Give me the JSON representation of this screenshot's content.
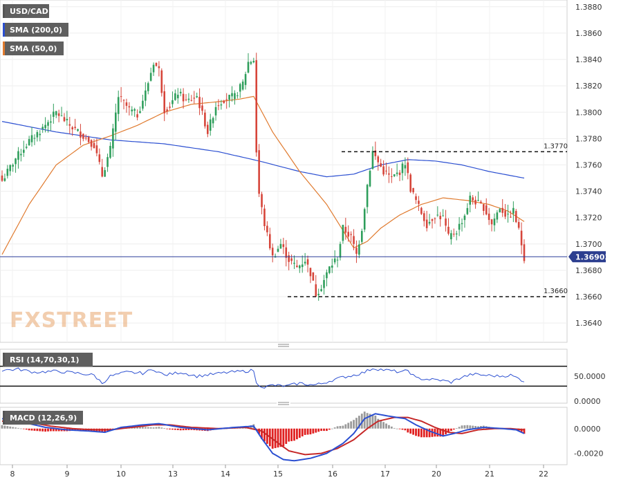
{
  "logo": {
    "text": "FXSTREET"
  },
  "chart_data": [
    {
      "type": "candlestick",
      "panel": "price",
      "symbol": "USD/CAD",
      "legend": [
        {
          "label": "USD/CAD",
          "color": "#555555"
        },
        {
          "label": "SMA (200,0)",
          "color": "#2b4fd1"
        },
        {
          "label": "SMA (50,0)",
          "color": "#e07a2e"
        }
      ],
      "ylim": [
        1.3628,
        1.3882
      ],
      "y_ticks": [
        "1.3880",
        "1.3860",
        "1.3840",
        "1.3820",
        "1.3800",
        "1.3780",
        "1.3760",
        "1.3740",
        "1.3720",
        "1.3700",
        "1.3680",
        "1.3660",
        "1.3640"
      ],
      "y_tick_values": [
        1.388,
        1.386,
        1.384,
        1.382,
        1.38,
        1.378,
        1.376,
        1.374,
        1.372,
        1.37,
        1.368,
        1.366,
        1.364
      ],
      "x_ticks": [
        "8",
        "9",
        "10",
        "13",
        "14",
        "15",
        "16",
        "17",
        "20",
        "21",
        "22"
      ],
      "last_price": {
        "label": "1.36903",
        "value": 1.36903
      },
      "levels": [
        {
          "label": "1.3770",
          "value": 1.377
        },
        {
          "label": "1.3660",
          "value": 1.366
        }
      ],
      "candle_colors": {
        "up": "#2e9e5b",
        "down": "#d6453a"
      },
      "close_anchors": [
        [
          0,
          1.3748
        ],
        [
          5,
          1.3765
        ],
        [
          10,
          1.3778
        ],
        [
          15,
          1.3788
        ],
        [
          20,
          1.38
        ],
        [
          25,
          1.379
        ],
        [
          30,
          1.3782
        ],
        [
          34,
          1.3775
        ],
        [
          37,
          1.3752
        ],
        [
          40,
          1.3772
        ],
        [
          43,
          1.3812
        ],
        [
          47,
          1.3802
        ],
        [
          50,
          1.3798
        ],
        [
          53,
          1.3815
        ],
        [
          56,
          1.3838
        ],
        [
          58,
          1.3832
        ],
        [
          60,
          1.3802
        ],
        [
          62,
          1.3805
        ],
        [
          65,
          1.3815
        ],
        [
          68,
          1.3808
        ],
        [
          72,
          1.3812
        ],
        [
          76,
          1.3785
        ],
        [
          79,
          1.3805
        ],
        [
          82,
          1.381
        ],
        [
          86,
          1.3812
        ],
        [
          89,
          1.3822
        ],
        [
          91,
          1.3838
        ],
        [
          93,
          1.384
        ],
        [
          94,
          1.377
        ],
        [
          95,
          1.3738
        ],
        [
          97,
          1.3715
        ],
        [
          100,
          1.369
        ],
        [
          103,
          1.37
        ],
        [
          106,
          1.3688
        ],
        [
          109,
          1.3682
        ],
        [
          112,
          1.3688
        ],
        [
          114,
          1.3678
        ],
        [
          116,
          1.3662
        ],
        [
          118,
          1.3668
        ],
        [
          121,
          1.3682
        ],
        [
          124,
          1.369
        ],
        [
          126,
          1.3712
        ],
        [
          129,
          1.3705
        ],
        [
          131,
          1.3692
        ],
        [
          133,
          1.3712
        ],
        [
          135,
          1.3745
        ],
        [
          137,
          1.377
        ],
        [
          139,
          1.3762
        ],
        [
          141,
          1.3755
        ],
        [
          144,
          1.375
        ],
        [
          147,
          1.3755
        ],
        [
          149,
          1.3762
        ],
        [
          151,
          1.3742
        ],
        [
          154,
          1.3728
        ],
        [
          157,
          1.3715
        ],
        [
          160,
          1.3722
        ],
        [
          163,
          1.372
        ],
        [
          165,
          1.3705
        ],
        [
          168,
          1.371
        ],
        [
          171,
          1.3722
        ],
        [
          173,
          1.3735
        ],
        [
          175,
          1.3732
        ],
        [
          178,
          1.3728
        ],
        [
          181,
          1.3715
        ],
        [
          184,
          1.3728
        ],
        [
          187,
          1.372
        ],
        [
          189,
          1.3725
        ],
        [
          191,
          1.371
        ],
        [
          193,
          1.369
        ]
      ],
      "sma200_anchors": [
        [
          0,
          1.3793
        ],
        [
          20,
          1.3785
        ],
        [
          40,
          1.3779
        ],
        [
          60,
          1.3776
        ],
        [
          80,
          1.377
        ],
        [
          95,
          1.3763
        ],
        [
          110,
          1.3755
        ],
        [
          120,
          1.3751
        ],
        [
          130,
          1.3753
        ],
        [
          140,
          1.376
        ],
        [
          150,
          1.3764
        ],
        [
          160,
          1.3763
        ],
        [
          170,
          1.376
        ],
        [
          180,
          1.3755
        ],
        [
          193,
          1.375
        ]
      ],
      "sma50_anchors": [
        [
          0,
          1.3692
        ],
        [
          10,
          1.373
        ],
        [
          20,
          1.376
        ],
        [
          30,
          1.3775
        ],
        [
          40,
          1.3782
        ],
        [
          50,
          1.379
        ],
        [
          60,
          1.38
        ],
        [
          70,
          1.3806
        ],
        [
          80,
          1.3808
        ],
        [
          88,
          1.381
        ],
        [
          93,
          1.3812
        ],
        [
          100,
          1.3785
        ],
        [
          110,
          1.3755
        ],
        [
          120,
          1.373
        ],
        [
          127,
          1.3707
        ],
        [
          130,
          1.3697
        ],
        [
          135,
          1.3702
        ],
        [
          140,
          1.3712
        ],
        [
          147,
          1.3722
        ],
        [
          155,
          1.373
        ],
        [
          163,
          1.3735
        ],
        [
          172,
          1.3733
        ],
        [
          180,
          1.373
        ],
        [
          187,
          1.3725
        ],
        [
          193,
          1.3717
        ]
      ]
    },
    {
      "type": "line",
      "panel": "rsi",
      "legend": [
        {
          "label": "RSI (14,70,30,1)",
          "color": "#555555"
        }
      ],
      "ylim": [
        0,
        100
      ],
      "y_ticks": [
        "50.0000",
        "0.0000"
      ],
      "y_tick_values": [
        50,
        0
      ],
      "levels": [
        70,
        30
      ],
      "line_color": "#2b4fd1",
      "rsi_anchors": [
        [
          0,
          62
        ],
        [
          6,
          64
        ],
        [
          12,
          58
        ],
        [
          20,
          60
        ],
        [
          28,
          56
        ],
        [
          34,
          52
        ],
        [
          37,
          36
        ],
        [
          40,
          50
        ],
        [
          46,
          58
        ],
        [
          52,
          56
        ],
        [
          56,
          64
        ],
        [
          60,
          52
        ],
        [
          66,
          58
        ],
        [
          72,
          50
        ],
        [
          78,
          54
        ],
        [
          84,
          58
        ],
        [
          90,
          60
        ],
        [
          93,
          62
        ],
        [
          94,
          35
        ],
        [
          97,
          28
        ],
        [
          100,
          32
        ],
        [
          105,
          30
        ],
        [
          110,
          36
        ],
        [
          115,
          32
        ],
        [
          118,
          35
        ],
        [
          122,
          42
        ],
        [
          126,
          48
        ],
        [
          130,
          52
        ],
        [
          134,
          58
        ],
        [
          137,
          66
        ],
        [
          142,
          62
        ],
        [
          148,
          58
        ],
        [
          150,
          62
        ],
        [
          153,
          46
        ],
        [
          157,
          44
        ],
        [
          162,
          42
        ],
        [
          166,
          38
        ],
        [
          170,
          48
        ],
        [
          174,
          54
        ],
        [
          178,
          52
        ],
        [
          184,
          50
        ],
        [
          188,
          52
        ],
        [
          191,
          45
        ],
        [
          193,
          40
        ]
      ]
    },
    {
      "type": "macd",
      "panel": "macd",
      "legend": [
        {
          "label": "MACD (12,26,9)",
          "color": "#555555"
        }
      ],
      "ylim": [
        -0.00275,
        0.00155
      ],
      "y_ticks": [
        "0.0000",
        "-0.0020"
      ],
      "y_tick_values": [
        0,
        -0.002
      ],
      "colors": {
        "macd": "#2b4fd1",
        "signal": "#c62828",
        "hist_pos": "#9a9a9a",
        "hist_neg": "#e02020"
      },
      "macd_anchors": [
        [
          0,
          0.0008
        ],
        [
          8,
          0.0005
        ],
        [
          16,
          0.0001
        ],
        [
          24,
          -0.0001
        ],
        [
          32,
          -0.0002
        ],
        [
          38,
          -0.0003
        ],
        [
          44,
          0.0001
        ],
        [
          52,
          0.0003
        ],
        [
          58,
          0.0004
        ],
        [
          66,
          0.0001
        ],
        [
          76,
          -0.0001
        ],
        [
          86,
          0.0001
        ],
        [
          93,
          0.0002
        ],
        [
          96,
          -0.0008
        ],
        [
          100,
          -0.002
        ],
        [
          104,
          -0.0025
        ],
        [
          108,
          -0.0026
        ],
        [
          114,
          -0.0024
        ],
        [
          120,
          -0.002
        ],
        [
          126,
          -0.0012
        ],
        [
          130,
          -0.0004
        ],
        [
          134,
          0.0008
        ],
        [
          138,
          0.0012
        ],
        [
          143,
          0.001
        ],
        [
          149,
          0.0008
        ],
        [
          153,
          0.0003
        ],
        [
          158,
          -0.0002
        ],
        [
          163,
          -0.0006
        ],
        [
          167,
          -0.0004
        ],
        [
          172,
          -0.0001
        ],
        [
          178,
          0.0001
        ],
        [
          185,
          0.0
        ],
        [
          190,
          -0.0001
        ],
        [
          193,
          -0.0004
        ]
      ],
      "signal_anchors": [
        [
          0,
          0.0006
        ],
        [
          10,
          0.0005
        ],
        [
          18,
          0.0002
        ],
        [
          26,
          0.0
        ],
        [
          34,
          -0.0001
        ],
        [
          40,
          -0.0001
        ],
        [
          48,
          0.0001
        ],
        [
          56,
          0.0003
        ],
        [
          62,
          0.0003
        ],
        [
          70,
          0.0001
        ],
        [
          80,
          0.0
        ],
        [
          90,
          0.0001
        ],
        [
          96,
          -0.0002
        ],
        [
          101,
          -0.001
        ],
        [
          106,
          -0.0018
        ],
        [
          112,
          -0.0021
        ],
        [
          118,
          -0.002
        ],
        [
          124,
          -0.0016
        ],
        [
          130,
          -0.0009
        ],
        [
          135,
          0.0
        ],
        [
          139,
          0.0006
        ],
        [
          145,
          0.0009
        ],
        [
          150,
          0.0009
        ],
        [
          155,
          0.0006
        ],
        [
          160,
          0.0001
        ],
        [
          165,
          -0.0003
        ],
        [
          170,
          -0.0004
        ],
        [
          176,
          -0.0001
        ],
        [
          182,
          0.0
        ],
        [
          188,
          0.0
        ],
        [
          193,
          -0.0001
        ]
      ]
    }
  ]
}
